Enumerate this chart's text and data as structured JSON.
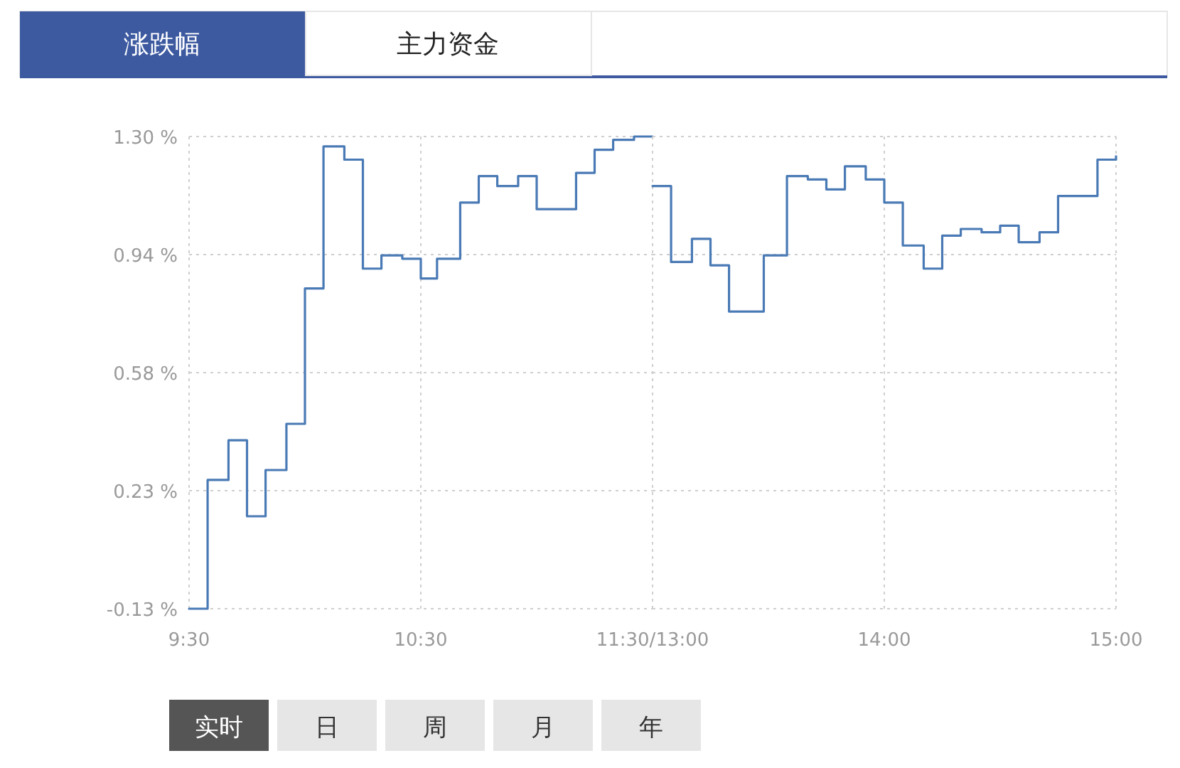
{
  "chart_data": [
    {
      "type": "step",
      "annotations": [
        "涨跌幅",
        "主力资金",
        "实时",
        "日",
        "周",
        "月",
        "年"
      ],
      "series": [
        {
          "color": "#4a7ab5",
          "x": [
            9.5,
            9.58,
            9.67,
            9.75,
            9.83,
            9.92,
            10.0,
            10.08,
            10.17,
            10.25,
            10.33,
            10.42,
            10.5,
            10.57,
            10.67,
            10.75,
            10.83,
            10.92,
            11.0,
            11.17,
            11.25,
            11.33,
            11.42,
            11.5
          ],
          "values": [
            -0.13,
            0.26,
            0.38,
            0.15,
            0.29,
            0.43,
            0.84,
            1.27,
            1.23,
            0.9,
            0.94,
            0.93,
            0.87,
            0.93,
            1.1,
            1.18,
            1.15,
            1.18,
            1.08,
            1.19,
            1.26,
            1.29,
            1.3,
            1.3
          ]
        }
      ],
      "xlim": [
        9.5,
        11.5
      ],
      "xticks": [
        {
          "value": 9.5,
          "label": "9:30"
        },
        {
          "value": 10.5,
          "label": "10:30"
        },
        {
          "value": 11.5,
          "label": "11:30/13:00"
        }
      ],
      "ylim": [
        -0.13,
        1.3
      ],
      "yticks": [
        {
          "value": -0.13,
          "label": "-0.13 %"
        },
        {
          "value": 0.2275,
          "label": "0.23 %"
        },
        {
          "value": 0.585,
          "label": "0.58 %"
        },
        {
          "value": 0.9425,
          "label": "0.94 %"
        },
        {
          "value": 1.3,
          "label": "1.30 %"
        }
      ],
      "grid": true,
      "marker": "none",
      "line_style": "solid"
    },
    {
      "type": "step",
      "series": [
        {
          "color": "#4a7ab5",
          "x": [
            13.0,
            13.08,
            13.17,
            13.25,
            13.33,
            13.48,
            13.58,
            13.67,
            13.75,
            13.83,
            13.92,
            14.0,
            14.08,
            14.17,
            14.25,
            14.33,
            14.42,
            14.5,
            14.58,
            14.67,
            14.75,
            14.92,
            15.0
          ],
          "values": [
            1.15,
            0.92,
            0.99,
            0.91,
            0.77,
            0.94,
            1.18,
            1.17,
            1.14,
            1.21,
            1.17,
            1.1,
            0.97,
            0.9,
            1.0,
            1.02,
            1.01,
            1.03,
            0.98,
            1.01,
            1.12,
            1.23,
            1.24
          ]
        }
      ],
      "xlim": [
        13,
        15
      ],
      "xticks": [
        {
          "value": 13,
          "label": null
        },
        {
          "value": 14,
          "label": "14:00"
        },
        {
          "value": 15,
          "label": "15:00"
        }
      ],
      "ylim": [
        -0.13,
        1.3
      ],
      "yticks": [
        {
          "value": -0.13,
          "label": null
        },
        {
          "value": 0.2275,
          "label": null
        },
        {
          "value": 0.585,
          "label": null
        },
        {
          "value": 0.9425,
          "label": null
        },
        {
          "value": 1.3,
          "label": null
        }
      ],
      "tick_labels": "x",
      "grid": true,
      "marker": "none",
      "line_style": "solid"
    }
  ]
}
